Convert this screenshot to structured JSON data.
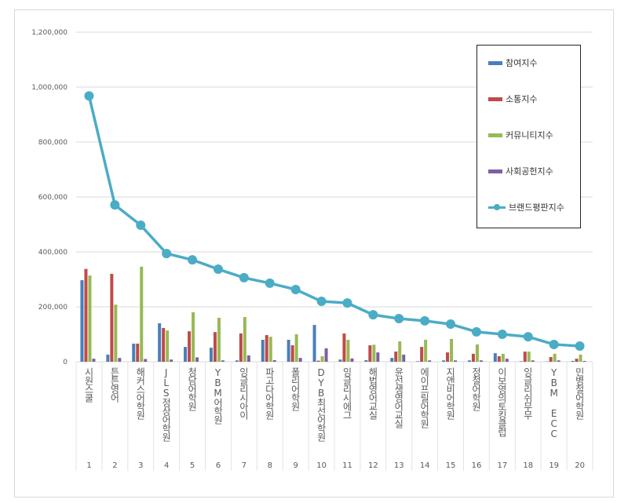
{
  "chart_data": {
    "type": "bar+line",
    "categories": [
      "시원스쿨",
      "튼튼영어",
      "해커스어학원",
      "JLS정상어학원",
      "청담어학원",
      "YBM어학원",
      "잉글리시아이",
      "파고다어학원",
      "폴리어학원",
      "DYB최선어학원",
      "잉글리시에그",
      "해법영어교실",
      "윤선생영어교실",
      "에이프릴어학원",
      "지앤비어학원",
      "정철어학원",
      "이보영의토킹클럽",
      "잉글리쉬무무",
      "YBM ECC",
      "민병철어학원"
    ],
    "ranks": [
      "1",
      "2",
      "3",
      "4",
      "5",
      "6",
      "7",
      "8",
      "9",
      "10",
      "11",
      "12",
      "13",
      "14",
      "15",
      "16",
      "17",
      "18",
      "19",
      "20"
    ],
    "yticks": [
      "0",
      "200,000",
      "400,000",
      "600,000",
      "800,000",
      "1,000,000",
      "1,200,000"
    ],
    "ylim": [
      0,
      1200000
    ],
    "grid": true,
    "legend_position": "top-right",
    "series": [
      {
        "name": "참여지수",
        "kind": "bar",
        "color": "#4a7ebb",
        "values": [
          297000,
          26000,
          66000,
          140000,
          54000,
          51000,
          5000,
          80000,
          80000,
          134000,
          8000,
          6000,
          14000,
          2000,
          5000,
          5000,
          31000,
          2000,
          1000,
          3000
        ]
      },
      {
        "name": "소통지수",
        "kind": "bar",
        "color": "#be4b48",
        "values": [
          338000,
          320000,
          66000,
          123000,
          111000,
          108000,
          103000,
          97000,
          60000,
          4000,
          103000,
          60000,
          37000,
          54000,
          34000,
          29000,
          20000,
          37000,
          17000,
          11000
        ]
      },
      {
        "name": "커뮤니티지수",
        "kind": "bar",
        "color": "#98b954",
        "values": [
          314000,
          208000,
          346000,
          114000,
          180000,
          160000,
          163000,
          91000,
          100000,
          20000,
          80000,
          62000,
          74000,
          80000,
          83000,
          63000,
          29000,
          37000,
          29000,
          26000
        ]
      },
      {
        "name": "사회공헌지수",
        "kind": "bar",
        "color": "#7d60a0",
        "values": [
          11000,
          14000,
          10000,
          8000,
          16000,
          5000,
          23000,
          6000,
          14000,
          49000,
          12000,
          34000,
          26000,
          5000,
          5000,
          5000,
          11000,
          5000,
          5000,
          3000
        ]
      },
      {
        "name": "브랜드평판지수",
        "kind": "line",
        "color": "#4bacc6",
        "values": [
          968000,
          571000,
          497000,
          394000,
          371000,
          337000,
          306000,
          286000,
          263000,
          220000,
          214000,
          171000,
          157000,
          149000,
          137000,
          109000,
          100000,
          91000,
          63000,
          57000
        ]
      }
    ]
  }
}
